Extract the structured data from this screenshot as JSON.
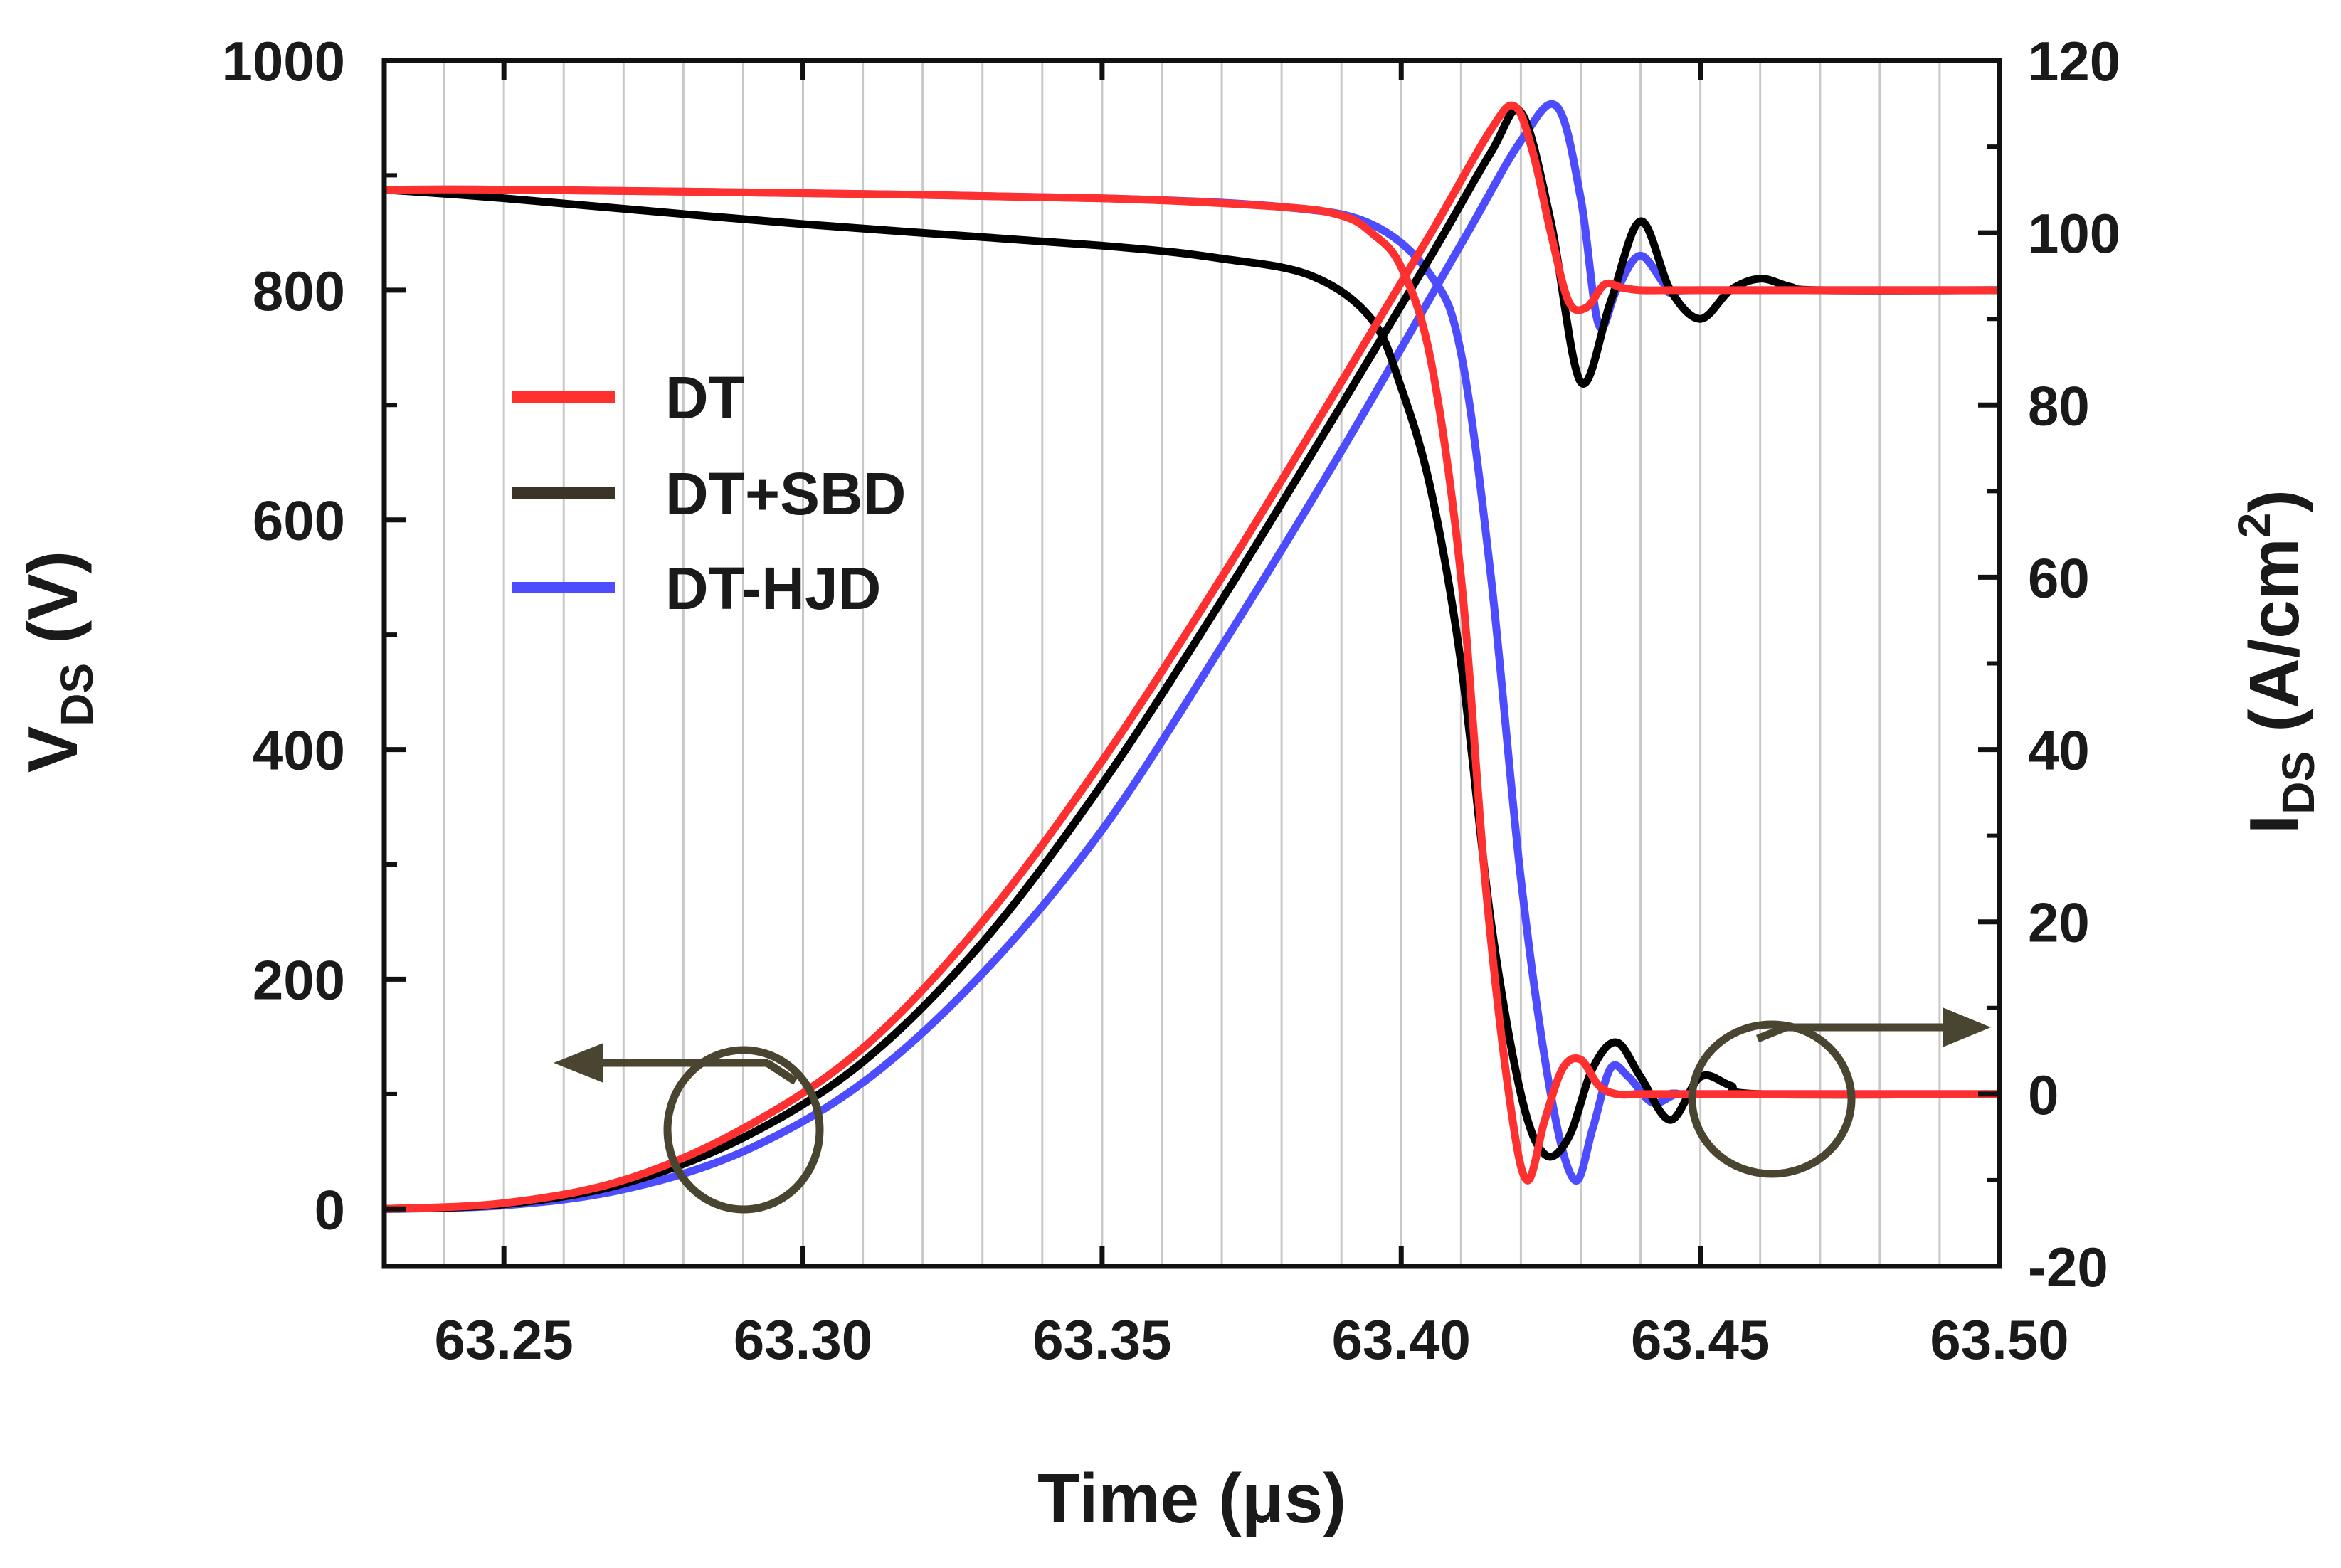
{
  "chart_data": {
    "type": "line",
    "title": "",
    "xlabel": "Time (μs)",
    "ylabel_left": {
      "main": "V",
      "sub": "DS",
      "rest": " (V)"
    },
    "ylabel_right": {
      "main": "I",
      "sub": "DS",
      "rest": " (A/cm",
      "sup": "2",
      "close": ")"
    },
    "xlim": [
      63.23,
      63.5
    ],
    "ylim_left": [
      -50,
      1000
    ],
    "ylim_right": [
      -20,
      120
    ],
    "x_ticks": [
      "63.25",
      "63.30",
      "63.35",
      "63.40",
      "63.45",
      "63.50"
    ],
    "x_tick_values": [
      63.25,
      63.3,
      63.35,
      63.4,
      63.45,
      63.5
    ],
    "y_left_ticks": [
      "0",
      "200",
      "400",
      "600",
      "800",
      "1000"
    ],
    "y_left_tick_values": [
      0,
      200,
      400,
      600,
      800,
      1000
    ],
    "y_right_ticks": [
      "-20",
      "0",
      "20",
      "40",
      "60",
      "80",
      "100",
      "120"
    ],
    "y_right_tick_values": [
      -20,
      0,
      20,
      40,
      60,
      80,
      100,
      120
    ],
    "grid": "vertical",
    "legend": {
      "placement": "upper-left",
      "entries": [
        {
          "name": "DT",
          "color": "#ff3030"
        },
        {
          "name": "DT+SBD",
          "color": "#000000"
        },
        {
          "name": "DT-HJD",
          "color": "#4d4dff"
        }
      ]
    },
    "annotations": [
      {
        "type": "ellipse-arrow",
        "points_to": "left axis (V_DS)",
        "color": "#4a4530"
      },
      {
        "type": "ellipse-arrow",
        "points_to": "right axis (I_DS)",
        "color": "#4a4530"
      }
    ],
    "series": [
      {
        "name": "DT",
        "quantity": "V_DS",
        "axis": "left",
        "color": "#ff3030",
        "x": [
          63.23,
          63.25,
          63.27,
          63.29,
          63.31,
          63.33,
          63.35,
          63.37,
          63.39,
          63.405,
          63.415,
          63.419,
          63.422,
          63.425,
          63.428,
          63.431,
          63.434,
          63.437,
          63.44,
          63.445,
          63.45,
          63.5
        ],
        "y": [
          0,
          5,
          25,
          70,
          140,
          250,
          390,
          550,
          720,
          850,
          940,
          960,
          920,
          850,
          790,
          785,
          805,
          802,
          800,
          800,
          800,
          800
        ]
      },
      {
        "name": "DT+SBD",
        "quantity": "V_DS",
        "axis": "left",
        "color": "#000000",
        "x": [
          63.23,
          63.25,
          63.27,
          63.29,
          63.31,
          63.33,
          63.35,
          63.37,
          63.39,
          63.405,
          63.415,
          63.42,
          63.425,
          63.43,
          63.435,
          63.44,
          63.445,
          63.45,
          63.455,
          63.46,
          63.465,
          63.47,
          63.5
        ],
        "y": [
          0,
          4,
          22,
          62,
          128,
          232,
          370,
          530,
          700,
          830,
          920,
          955,
          860,
          720,
          790,
          860,
          800,
          775,
          800,
          810,
          803,
          800,
          800
        ]
      },
      {
        "name": "DT-HJD",
        "quantity": "V_DS",
        "axis": "left",
        "color": "#4d4dff",
        "x": [
          63.23,
          63.25,
          63.27,
          63.29,
          63.31,
          63.33,
          63.35,
          63.37,
          63.39,
          63.41,
          63.42,
          63.426,
          63.43,
          63.433,
          63.436,
          63.44,
          63.445,
          63.45,
          63.5
        ],
        "y": [
          0,
          3,
          17,
          50,
          110,
          205,
          330,
          490,
          660,
          840,
          930,
          960,
          880,
          770,
          800,
          830,
          800,
          800,
          800
        ]
      },
      {
        "name": "DT",
        "quantity": "I_DS",
        "axis": "right",
        "color": "#ff3030",
        "x": [
          63.23,
          63.25,
          63.3,
          63.35,
          63.38,
          63.39,
          63.395,
          63.4,
          63.405,
          63.41,
          63.414,
          63.418,
          63.421,
          63.424,
          63.427,
          63.43,
          63.433,
          63.436,
          63.44,
          63.445,
          63.5
        ],
        "y": [
          105,
          105,
          104.6,
          104,
          103,
          102,
          100,
          96,
          85,
          60,
          25,
          0,
          -10,
          -3,
          3,
          4,
          1,
          0,
          0,
          0,
          0
        ]
      },
      {
        "name": "DT+SBD",
        "quantity": "I_DS",
        "axis": "right",
        "color": "#000000",
        "x": [
          63.23,
          63.25,
          63.3,
          63.35,
          63.37,
          63.385,
          63.395,
          63.4,
          63.405,
          63.41,
          63.415,
          63.42,
          63.424,
          63.428,
          63.432,
          63.436,
          63.44,
          63.445,
          63.45,
          63.455,
          63.46,
          63.5
        ],
        "y": [
          105,
          104,
          101,
          98.5,
          97,
          95,
          90,
          82,
          70,
          50,
          20,
          0,
          -7,
          -5,
          3,
          6,
          2,
          -3,
          2,
          1,
          0,
          0
        ]
      },
      {
        "name": "DT-HJD",
        "quantity": "I_DS",
        "axis": "right",
        "color": "#4d4dff",
        "x": [
          63.23,
          63.25,
          63.3,
          63.35,
          63.38,
          63.395,
          63.405,
          63.41,
          63.415,
          63.42,
          63.425,
          63.429,
          63.432,
          63.435,
          63.438,
          63.442,
          63.446,
          63.45,
          63.5
        ],
        "y": [
          105,
          105,
          104.6,
          104,
          103,
          101,
          95,
          86,
          60,
          25,
          0,
          -10,
          -4,
          3,
          2,
          -1,
          0,
          0,
          0
        ]
      }
    ]
  }
}
